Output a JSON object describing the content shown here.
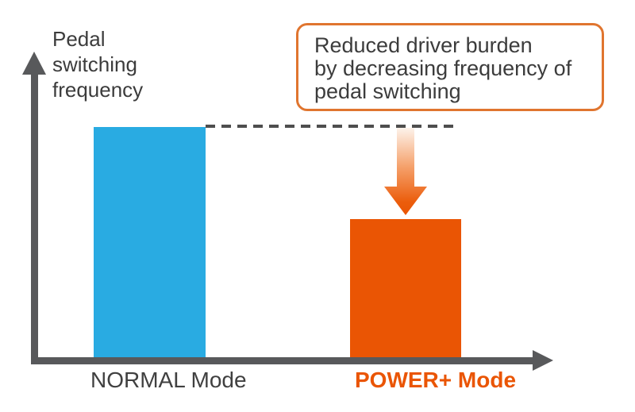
{
  "chart_data": {
    "type": "bar",
    "title": "",
    "ylabel": "Pedal\nswitching\nfrequency",
    "xlabel": "",
    "categories": [
      "NORMAL Mode",
      "POWER+ Mode"
    ],
    "values": [
      100,
      60
    ],
    "ylim": [
      0,
      100
    ],
    "value_scale": "relative, no numeric ticks shown",
    "grid": false,
    "legend": "none",
    "bar_colors": [
      "#29ABE2",
      "#EA5504"
    ],
    "category_label_colors": [
      "#404040",
      "#EA5504"
    ],
    "annotations": [
      {
        "type": "callout",
        "text": "Reduced driver burden\nby decreasing frequency of\npedal switching",
        "border_color": "#E0752F"
      },
      {
        "type": "reference_line",
        "style": "dashed",
        "level": 100,
        "color": "#4E4E4E"
      },
      {
        "type": "arrow_down",
        "from_level": 100,
        "to_level": 60,
        "color": "#EA5504"
      }
    ]
  },
  "colors": {
    "background": "#FFFFFF",
    "axis": "#58595B",
    "text": "#3C3C3C",
    "dashed_line": "#4E4E4E",
    "normal_bar": "#29ABE2",
    "power_bar": "#EA5504",
    "callout_border": "#E0752F"
  }
}
